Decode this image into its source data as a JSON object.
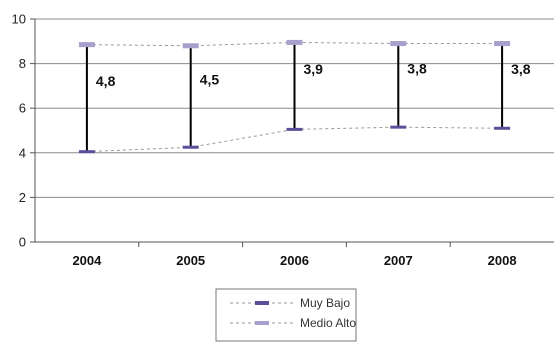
{
  "chart_data": {
    "type": "line",
    "categories": [
      "2004",
      "2005",
      "2006",
      "2007",
      "2008"
    ],
    "series": [
      {
        "name": "Muy Bajo",
        "values": [
          4.05,
          4.25,
          5.05,
          5.15,
          5.1
        ],
        "color": "#5b4f9a"
      },
      {
        "name": "Medio Alto",
        "values": [
          8.85,
          8.8,
          8.95,
          8.9,
          8.9
        ],
        "color": "#a89fcc"
      }
    ],
    "gap_labels": [
      "4,8",
      "4,5",
      "3,9",
      "3,8",
      "3,8"
    ],
    "ylim": [
      0,
      10
    ],
    "yticks": [
      "0",
      "2",
      "4",
      "6",
      "8",
      "10"
    ],
    "grid": true,
    "legend_position": "bottom",
    "connector_color": "#000000"
  }
}
